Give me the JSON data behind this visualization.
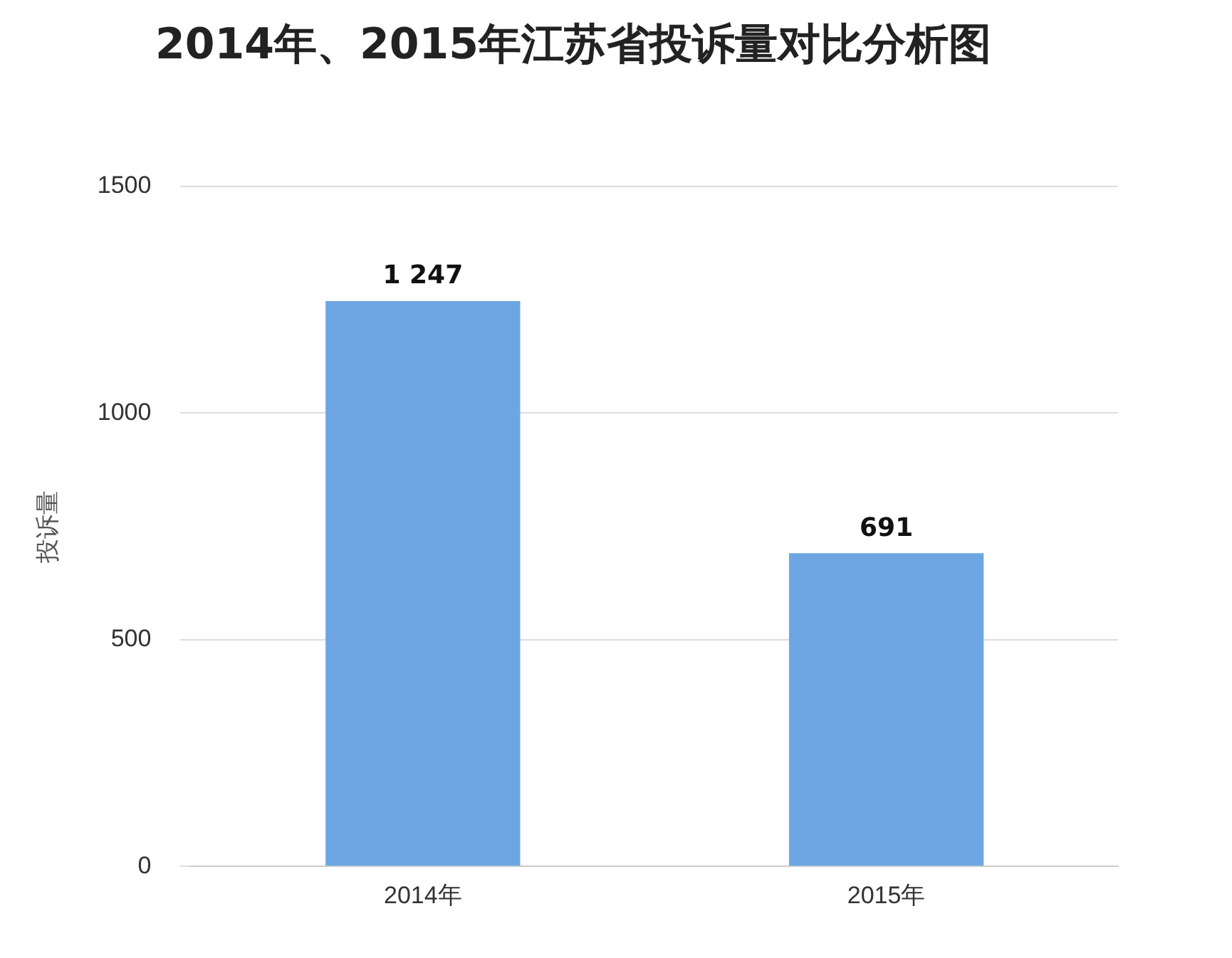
{
  "chart_data": {
    "type": "bar",
    "title": "2014年、2015年江苏省投诉量对比分析图",
    "ylabel": "投诉量",
    "categories": [
      "2014年",
      "2015年"
    ],
    "values": [
      1247,
      691
    ],
    "color": "#6ea6e4",
    "value_labels": [
      "1 247",
      "691"
    ],
    "ylim": [
      0,
      1500
    ],
    "yticks": [
      0,
      500,
      1000,
      1500
    ],
    "grid": "y",
    "legend": false
  }
}
